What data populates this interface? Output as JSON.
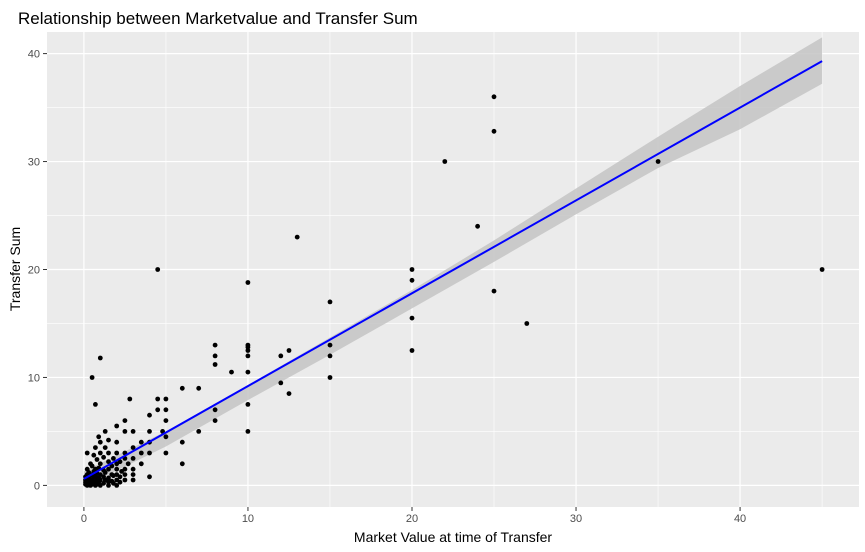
{
  "chart_data": {
    "type": "scatter",
    "title": "Relationship between Marketvalue and Transfer Sum",
    "xlabel": "Market Value at time of Transfer",
    "ylabel": "Transfer Sum",
    "xlim": [
      -2.25,
      47.25
    ],
    "ylim": [
      -2.0,
      42.0
    ],
    "x_ticks": [
      0,
      10,
      20,
      30,
      40
    ],
    "y_ticks": [
      0,
      10,
      20,
      30,
      40
    ],
    "grid": true,
    "legend": "none",
    "colors": {
      "panel_background": "#ebebeb",
      "grid_major": "#ffffff",
      "points": "#000000",
      "fit_line": "#0000ff",
      "confidence_band": "#c4c4c4"
    },
    "points": [
      [
        0.1,
        0.1
      ],
      [
        0.1,
        0.3
      ],
      [
        0.1,
        0.5
      ],
      [
        0.1,
        0.8
      ],
      [
        0.2,
        0.0
      ],
      [
        0.2,
        0.2
      ],
      [
        0.2,
        0.6
      ],
      [
        0.2,
        1.0
      ],
      [
        0.2,
        1.5
      ],
      [
        0.2,
        3.0
      ],
      [
        0.3,
        0.1
      ],
      [
        0.3,
        0.4
      ],
      [
        0.3,
        0.7
      ],
      [
        0.3,
        1.2
      ],
      [
        0.4,
        0.0
      ],
      [
        0.4,
        0.3
      ],
      [
        0.4,
        0.9
      ],
      [
        0.4,
        2.0
      ],
      [
        0.5,
        0.1
      ],
      [
        0.5,
        0.5
      ],
      [
        0.5,
        1.0
      ],
      [
        0.5,
        1.8
      ],
      [
        0.5,
        10.0
      ],
      [
        0.6,
        0.2
      ],
      [
        0.6,
        0.8
      ],
      [
        0.6,
        1.3
      ],
      [
        0.6,
        2.8
      ],
      [
        0.7,
        0.0
      ],
      [
        0.7,
        0.4
      ],
      [
        0.7,
        0.9
      ],
      [
        0.7,
        1.5
      ],
      [
        0.7,
        3.5
      ],
      [
        0.7,
        7.5
      ],
      [
        0.8,
        0.1
      ],
      [
        0.8,
        0.6
      ],
      [
        0.8,
        1.1
      ],
      [
        0.8,
        2.4
      ],
      [
        0.9,
        0.3
      ],
      [
        0.9,
        0.7
      ],
      [
        0.9,
        1.6
      ],
      [
        0.9,
        4.5
      ],
      [
        1.0,
        0.0
      ],
      [
        1.0,
        0.5
      ],
      [
        1.0,
        1.0
      ],
      [
        1.0,
        2.0
      ],
      [
        1.0,
        3.0
      ],
      [
        1.0,
        4.0
      ],
      [
        1.0,
        11.8
      ],
      [
        1.2,
        0.2
      ],
      [
        1.2,
        0.8
      ],
      [
        1.2,
        1.4
      ],
      [
        1.2,
        2.6
      ],
      [
        1.3,
        0.5
      ],
      [
        1.3,
        1.2
      ],
      [
        1.3,
        3.5
      ],
      [
        1.3,
        5.0
      ],
      [
        1.5,
        0.0
      ],
      [
        1.5,
        0.3
      ],
      [
        1.5,
        0.7
      ],
      [
        1.5,
        1.5
      ],
      [
        1.5,
        2.2
      ],
      [
        1.5,
        3.0
      ],
      [
        1.5,
        4.2
      ],
      [
        1.7,
        0.4
      ],
      [
        1.7,
        1.0
      ],
      [
        1.7,
        1.8
      ],
      [
        1.8,
        0.2
      ],
      [
        1.8,
        0.9
      ],
      [
        1.8,
        2.5
      ],
      [
        2.0,
        0.0
      ],
      [
        2.0,
        0.5
      ],
      [
        2.0,
        1.0
      ],
      [
        2.0,
        1.5
      ],
      [
        2.0,
        2.0
      ],
      [
        2.0,
        3.0
      ],
      [
        2.0,
        4.0
      ],
      [
        2.0,
        5.5
      ],
      [
        2.2,
        0.3
      ],
      [
        2.2,
        0.8
      ],
      [
        2.2,
        2.2
      ],
      [
        2.3,
        1.3
      ],
      [
        2.5,
        0.5
      ],
      [
        2.5,
        1.0
      ],
      [
        2.5,
        1.5
      ],
      [
        2.5,
        2.5
      ],
      [
        2.5,
        3.0
      ],
      [
        2.5,
        5.0
      ],
      [
        2.5,
        6.0
      ],
      [
        2.7,
        2.0
      ],
      [
        2.8,
        8.0
      ],
      [
        3.0,
        0.5
      ],
      [
        3.0,
        1.0
      ],
      [
        3.0,
        1.5
      ],
      [
        3.0,
        2.5
      ],
      [
        3.0,
        3.5
      ],
      [
        3.0,
        5.0
      ],
      [
        3.5,
        2.0
      ],
      [
        3.5,
        3.0
      ],
      [
        3.5,
        4.0
      ],
      [
        4.0,
        0.8
      ],
      [
        4.0,
        3.0
      ],
      [
        4.0,
        5.0
      ],
      [
        4.0,
        6.5
      ],
      [
        4.0,
        4.0
      ],
      [
        4.5,
        7.0
      ],
      [
        4.5,
        8.0
      ],
      [
        4.5,
        20.0
      ],
      [
        4.8,
        5.0
      ],
      [
        5.0,
        3.0
      ],
      [
        5.0,
        4.5
      ],
      [
        5.0,
        6.0
      ],
      [
        5.0,
        7.0
      ],
      [
        5.0,
        8.0
      ],
      [
        6.0,
        2.0
      ],
      [
        6.0,
        4.0
      ],
      [
        6.0,
        9.0
      ],
      [
        7.0,
        5.0
      ],
      [
        7.0,
        9.0
      ],
      [
        8.0,
        6.0
      ],
      [
        8.0,
        7.0
      ],
      [
        8.0,
        11.2
      ],
      [
        8.0,
        12.0
      ],
      [
        8.0,
        13.0
      ],
      [
        9.0,
        10.5
      ],
      [
        10.0,
        5.0
      ],
      [
        10.0,
        7.5
      ],
      [
        10.0,
        10.5
      ],
      [
        10.0,
        12.0
      ],
      [
        10.0,
        12.5
      ],
      [
        10.0,
        12.8
      ],
      [
        10.0,
        13.0
      ],
      [
        10.0,
        18.8
      ],
      [
        12.0,
        9.5
      ],
      [
        12.0,
        12.0
      ],
      [
        12.5,
        8.5
      ],
      [
        12.5,
        12.5
      ],
      [
        13.0,
        23.0
      ],
      [
        15.0,
        10.0
      ],
      [
        15.0,
        12.0
      ],
      [
        15.0,
        13.0
      ],
      [
        15.0,
        17.0
      ],
      [
        20.0,
        12.5
      ],
      [
        20.0,
        15.5
      ],
      [
        20.0,
        19.0
      ],
      [
        20.0,
        20.0
      ],
      [
        22.0,
        30.0
      ],
      [
        24.0,
        24.0
      ],
      [
        25.0,
        18.0
      ],
      [
        25.0,
        32.8
      ],
      [
        25.0,
        36.0
      ],
      [
        27.0,
        15.0
      ],
      [
        35.0,
        30.0
      ],
      [
        45.0,
        20.0
      ]
    ],
    "fit_line": {
      "method": "lm",
      "x": [
        0,
        45
      ],
      "y": [
        0.6,
        39.3
      ]
    },
    "confidence_band": {
      "x": [
        0,
        5,
        10,
        15,
        20,
        25,
        30,
        35,
        40,
        45
      ],
      "upper": [
        1.3,
        5.0,
        9.3,
        13.7,
        18.1,
        22.7,
        27.5,
        32.3,
        37.0,
        41.5
      ],
      "lower": [
        -0.1,
        3.6,
        7.9,
        12.1,
        16.4,
        20.7,
        25.1,
        29.4,
        33.0,
        37.2
      ]
    }
  }
}
